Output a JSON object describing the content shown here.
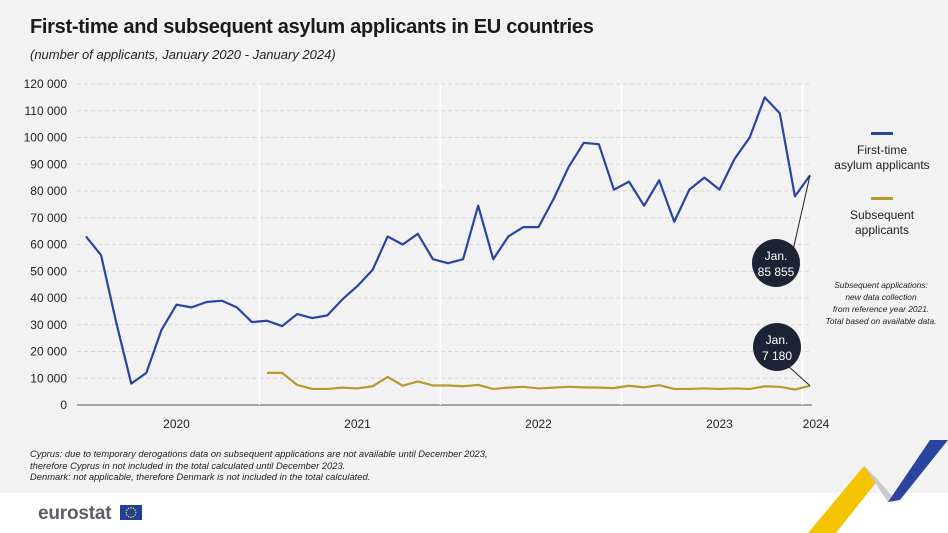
{
  "title": "First-time and subsequent asylum applicants in EU countries",
  "subtitle": "(number of applicants, January 2020 - January 2024)",
  "colors": {
    "first_time": "#2a44a0",
    "subsequent": "#b69a2f",
    "callout": "#1e2235",
    "grid": "#d6d6d6",
    "background": "#f2f2f2"
  },
  "chart_data": {
    "type": "line",
    "x_start": "2020-01",
    "x_end": "2024-01",
    "x_tick_labels": [
      "2020",
      "2021",
      "2022",
      "2023",
      "2024"
    ],
    "ylim": [
      0,
      120000
    ],
    "y_ticks": [
      0,
      10000,
      20000,
      30000,
      40000,
      50000,
      60000,
      70000,
      80000,
      90000,
      100000,
      110000,
      120000
    ],
    "y_tick_labels": [
      "0",
      "10 000",
      "20 000",
      "30 000",
      "40 000",
      "50 000",
      "60 000",
      "70 000",
      "80 000",
      "90 000",
      "100 000",
      "110 000",
      "120 000"
    ],
    "grid": true,
    "legend_position": "right",
    "series": [
      {
        "name": "First-time asylum applicants",
        "start": "2020-01",
        "values": [
          63000,
          56000,
          31000,
          8000,
          12000,
          28000,
          37500,
          36500,
          38500,
          39000,
          36500,
          31000,
          31500,
          29500,
          34000,
          32500,
          33500,
          39500,
          44500,
          50500,
          63000,
          60000,
          64000,
          54500,
          53000,
          54500,
          74500,
          54500,
          63000,
          66500,
          66500,
          77000,
          89000,
          98000,
          97500,
          80500,
          83500,
          74500,
          84000,
          68500,
          80500,
          85000,
          80500,
          92000,
          100000,
          115000,
          109000,
          78000,
          85855
        ]
      },
      {
        "name": "Subsequent applicants",
        "start": "2021-01",
        "values": [
          12000,
          12000,
          7500,
          6000,
          6000,
          6500,
          6200,
          7000,
          10500,
          7200,
          8800,
          7300,
          7300,
          7000,
          7500,
          6000,
          6500,
          6800,
          6200,
          6500,
          6800,
          6600,
          6500,
          6300,
          7200,
          6600,
          7400,
          6000,
          6000,
          6200,
          6000,
          6200,
          6000,
          7000,
          6800,
          5800,
          7180
        ]
      }
    ],
    "annotations": [
      {
        "label": "Jan.",
        "value_text": "85 855"
      },
      {
        "label": "Jan.",
        "value_text": "7 180"
      }
    ]
  },
  "legend": {
    "first_time": [
      "First-time",
      "asylum applicants"
    ],
    "subsequent": [
      "Subsequent",
      "applicants"
    ]
  },
  "side_note": [
    "Subsequent applications:",
    "new data collection",
    "from reference year 2021.",
    "Total based on available data."
  ],
  "footnotes": [
    "Cyprus: due to temporary derogations data on subsequent applications are not available until December 2023,",
    "therefore Cyprus in not included in the total calculated until December 2023.",
    "Denmark: not applicable, therefore Denmark is not included in the total calculated."
  ],
  "brand": {
    "logo_text": "eurostat",
    "logo_icon": "eu-flag-icon"
  }
}
